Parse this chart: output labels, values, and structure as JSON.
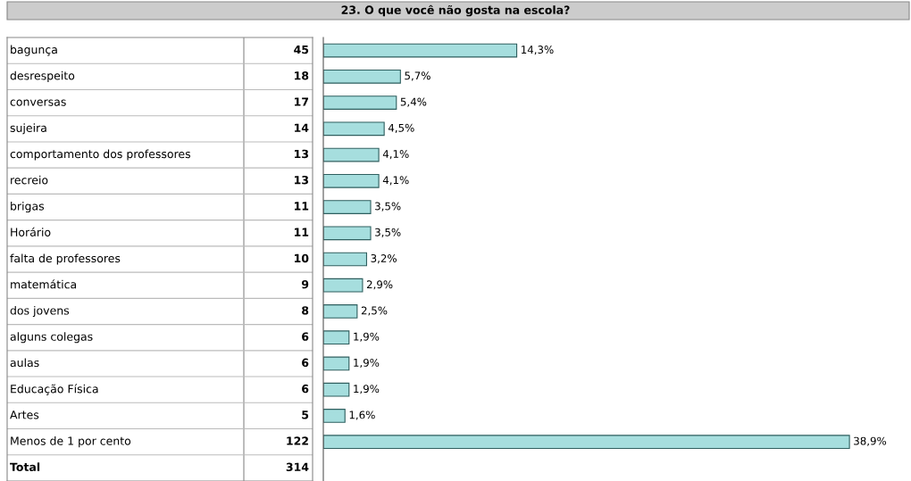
{
  "chart_data": {
    "type": "bar",
    "orientation": "horizontal",
    "title": "23. O que você não gosta na escola?",
    "categories": [
      "bagunça",
      "desrespeito",
      "conversas",
      "sujeira",
      "comportamento dos professores",
      "recreio",
      "brigas",
      "Horário",
      "falta de professores",
      "matemática",
      "dos jovens",
      "alguns colegas",
      "aulas",
      "Educação Física",
      "Artes",
      "Menos de 1 por cento"
    ],
    "values": [
      14.3,
      5.7,
      5.4,
      4.5,
      4.1,
      4.1,
      3.5,
      3.5,
      3.2,
      2.9,
      2.5,
      1.9,
      1.9,
      1.9,
      1.6,
      38.9
    ],
    "color": "#a6dede",
    "value_labels": [
      "14,3%",
      "5,7%",
      "5,4%",
      "4,5%",
      "4,1%",
      "4,1%",
      "3,5%",
      "3,5%",
      "3,2%",
      "2,9%",
      "2,5%",
      "1,9%",
      "1,9%",
      "1,9%",
      "1,6%",
      "38,9%"
    ],
    "annotations": [
      "45",
      "18",
      "17",
      "14",
      "13",
      "13",
      "11",
      "11",
      "10",
      "9",
      "8",
      "6",
      "6",
      "6",
      "5",
      "122",
      "Total",
      "314"
    ]
  }
}
